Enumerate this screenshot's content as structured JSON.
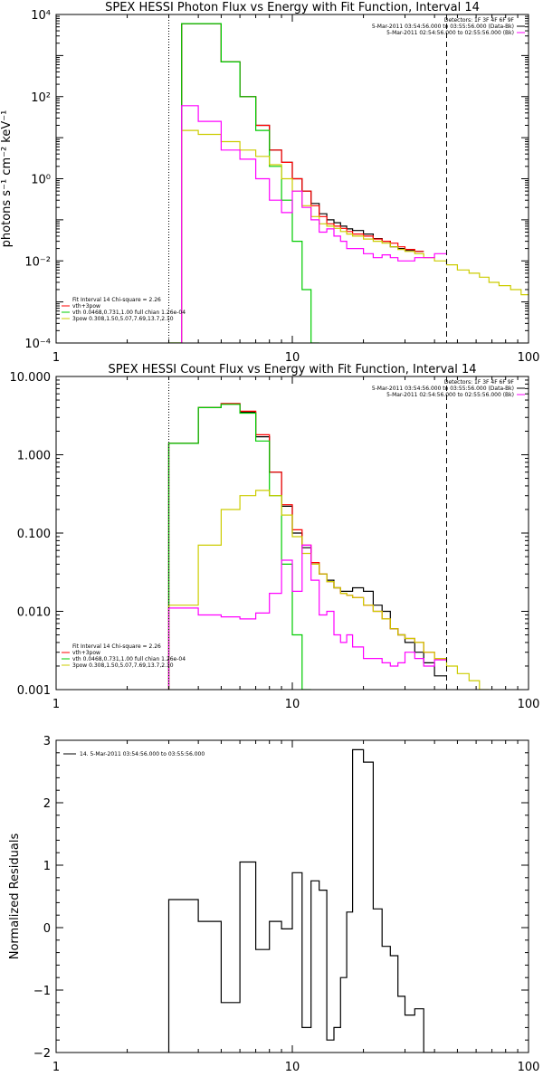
{
  "chart_data": [
    {
      "type": "line",
      "title": "SPEX HESSI Photon Flux vs Energy with Fit Function, Interval 14",
      "xlabel": "",
      "ylabel": "photons s⁻¹ cm⁻² keV⁻¹",
      "xscale": "log",
      "yscale": "log",
      "xlim": [
        1,
        100
      ],
      "ylim": [
        0.0001,
        10000
      ],
      "xticks": [
        {
          "v": 1,
          "label": "1"
        },
        {
          "v": 10,
          "label": "10"
        },
        {
          "v": 100,
          "label": "100"
        }
      ],
      "yticks": [
        {
          "v": 0.0001,
          "label": "10⁻⁴"
        },
        {
          "v": 0.01,
          "label": "10⁻²"
        },
        {
          "v": 1,
          "label": "10⁰"
        },
        {
          "v": 100,
          "label": "10²"
        },
        {
          "v": 10000,
          "label": "10⁴"
        }
      ],
      "grid": false,
      "vlines": [
        {
          "x": 3.0,
          "style": "dotted",
          "color": "#000000"
        },
        {
          "x": 45,
          "style": "dashed",
          "color": "#000000"
        }
      ],
      "legend_top_right": {
        "lines": [
          "Detectors: 1F 3F 4F 6F 9F",
          "5-Mar-2011 03:54:56.000 to 03:55:56.000 (Data-Bk)",
          "5-Mar-2011 02:54:56.000 to 02:55:56.000 (Bk)"
        ],
        "colors": [
          "",
          "#000000",
          "#ff00ff"
        ]
      },
      "legend_bottom_left": {
        "lines": [
          "Fit Interval 14    Chi-square = 2.26",
          "vth+3pow",
          "vth 0.0468,0.731,1.00  full chian 1.26e-04",
          "3pow 0.308,1.50,5.07,7.69,13.7,2.10"
        ],
        "colors": [
          "",
          "#ff0000",
          "#00cc00",
          "#cccc00"
        ]
      },
      "edges": [
        3.0,
        3.4,
        4.0,
        5.0,
        6.0,
        7.0,
        8.0,
        9.0,
        10.0,
        11.0,
        12.0,
        13.0,
        14.0,
        15.0,
        16.0,
        17.0,
        18.0,
        20.0,
        22.0,
        24.0,
        26.0,
        28.0,
        30.0,
        33.0,
        36.0,
        40.0,
        45.0,
        50.0,
        56.0,
        62.0,
        68.0,
        75.0,
        84.0,
        93.0,
        100.0
      ],
      "series": [
        {
          "name": "Data-Bk",
          "color": "#000000",
          "start": 1,
          "values": [
            6000,
            6000,
            700,
            100,
            20,
            5,
            2.5,
            1,
            0.5,
            0.25,
            0.14,
            0.1,
            0.085,
            0.07,
            0.06,
            0.055,
            0.045,
            0.035,
            0.03,
            0.022,
            0.02,
            0.018,
            0.017
          ]
        },
        {
          "name": "vth+3pow",
          "color": "#ff0000",
          "start": 1,
          "values": [
            6000,
            6000,
            700,
            100,
            20,
            5,
            2.5,
            1,
            0.5,
            0.22,
            0.12,
            0.08,
            0.07,
            0.062,
            0.052,
            0.045,
            0.04,
            0.034,
            0.03,
            0.027,
            0.022,
            0.019,
            0.017
          ]
        },
        {
          "name": "vth",
          "color": "#00cc00",
          "start": 0,
          "values": [
            0.0001,
            6000,
            6000,
            700,
            100,
            15,
            2,
            0.3,
            0.03,
            0.002,
            0.0001
          ]
        },
        {
          "name": "3pow",
          "color": "#cccc00",
          "start": 0,
          "values": [
            0.0001,
            15,
            12,
            8,
            5,
            3.5,
            2.2,
            1,
            0.5,
            0.22,
            0.12,
            0.08,
            0.07,
            0.062,
            0.052,
            0.045,
            0.04,
            0.034,
            0.03,
            0.027,
            0.022,
            0.019,
            0.017,
            0.015,
            0.012,
            0.01,
            0.008,
            0.006,
            0.005,
            0.004,
            0.003,
            0.0025,
            0.002,
            0.0015
          ]
        },
        {
          "name": "Bk",
          "color": "#ff00ff",
          "start": 1,
          "values": [
            60,
            25,
            5,
            3,
            1,
            0.3,
            0.15,
            0.5,
            0.2,
            0.1,
            0.05,
            0.06,
            0.04,
            0.03,
            0.02,
            0.02,
            0.015,
            0.012,
            0.014,
            0.012,
            0.01,
            0.01,
            0.012,
            0.012,
            0.015
          ]
        }
      ]
    },
    {
      "type": "line",
      "title": "SPEX HESSI Count Flux vs Energy with Fit Function, Interval 14",
      "xlabel": "",
      "ylabel": "",
      "xscale": "log",
      "yscale": "log",
      "xlim": [
        1,
        100
      ],
      "ylim": [
        0.001,
        10
      ],
      "xticks": [
        {
          "v": 1,
          "label": "1"
        },
        {
          "v": 10,
          "label": "10"
        },
        {
          "v": 100,
          "label": "100"
        }
      ],
      "yticks": [
        {
          "v": 0.001,
          "label": "0.001"
        },
        {
          "v": 0.01,
          "label": "0.010"
        },
        {
          "v": 0.1,
          "label": "0.100"
        },
        {
          "v": 1,
          "label": "1.000"
        },
        {
          "v": 10,
          "label": "10.000"
        }
      ],
      "grid": false,
      "vlines": [
        {
          "x": 3.0,
          "style": "dotted",
          "color": "#000000"
        },
        {
          "x": 45,
          "style": "dashed",
          "color": "#000000"
        }
      ],
      "legend_top_right": {
        "lines": [
          "Detectors: 1F 3F 4F 6F 9F",
          "5-Mar-2011 03:54:56.000 to 03:55:56.000 (Data-Bk)",
          "5-Mar-2011 02:54:56.000 to 02:55:56.000 (Bk)"
        ],
        "colors": [
          "",
          "#000000",
          "#ff00ff"
        ]
      },
      "legend_bottom_left": {
        "lines": [
          "Fit Interval 14    Chi-square = 2.26",
          "vth+3pow",
          "vth 0.0468,0.731,1.00  full chian 1.26e-04",
          "3pow 0.308,1.50,5.07,7.69,13.7,2.10"
        ],
        "colors": [
          "",
          "#ff0000",
          "#00cc00",
          "#cccc00"
        ]
      },
      "edges": [
        3.0,
        4.0,
        5.0,
        6.0,
        7.0,
        8.0,
        9.0,
        10.0,
        11.0,
        12.0,
        13.0,
        14.0,
        15.0,
        16.0,
        17.0,
        18.0,
        20.0,
        22.0,
        24.0,
        26.0,
        28.0,
        30.0,
        33.0,
        36.0,
        40.0,
        45.0,
        50.0,
        56.0,
        62.0,
        68.0,
        75.0,
        84.0,
        93.0,
        100.0
      ],
      "series": [
        {
          "name": "Data-Bk",
          "color": "#000000",
          "start": 0,
          "values": [
            1.4,
            4,
            4.5,
            3.5,
            1.7,
            0.6,
            0.22,
            0.1,
            0.065,
            0.04,
            0.03,
            0.025,
            0.02,
            0.018,
            0.018,
            0.02,
            0.018,
            0.012,
            0.01,
            0.006,
            0.005,
            0.004,
            0.003,
            0.0022,
            0.0015
          ]
        },
        {
          "name": "vth+3pow",
          "color": "#ff0000",
          "start": 0,
          "values": [
            1.4,
            4,
            4.5,
            3.6,
            1.8,
            0.6,
            0.23,
            0.11,
            0.07,
            0.042,
            0.03,
            0.024,
            0.02,
            0.017,
            0.016,
            0.015,
            0.012,
            0.01,
            0.008,
            0.006,
            0.005,
            0.0045,
            0.004,
            0.003,
            0.0025
          ]
        },
        {
          "name": "vth",
          "color": "#00cc00",
          "start": 0,
          "values": [
            1.4,
            4,
            4.4,
            3.4,
            1.5,
            0.3,
            0.04,
            0.005,
            0.001
          ]
        },
        {
          "name": "3pow",
          "color": "#cccc00",
          "start": 0,
          "values": [
            0.012,
            0.07,
            0.2,
            0.3,
            0.35,
            0.3,
            0.17,
            0.09,
            0.055,
            0.04,
            0.03,
            0.024,
            0.02,
            0.017,
            0.016,
            0.015,
            0.012,
            0.01,
            0.008,
            0.006,
            0.005,
            0.0045,
            0.004,
            0.003,
            0.0025,
            0.002,
            0.0016,
            0.0013,
            0.001
          ]
        },
        {
          "name": "Bk",
          "color": "#ff00ff",
          "start": 0,
          "values": [
            0.011,
            0.009,
            0.0085,
            0.008,
            0.0095,
            0.017,
            0.045,
            0.018,
            0.07,
            0.025,
            0.009,
            0.01,
            0.005,
            0.004,
            0.005,
            0.0035,
            0.0025,
            0.0025,
            0.0022,
            0.002,
            0.0022,
            0.003,
            0.0025,
            0.002,
            0.0024
          ]
        }
      ]
    },
    {
      "type": "line",
      "title": "",
      "xlabel": "",
      "ylabel": "Normalized Residuals",
      "xscale": "log",
      "yscale": "linear",
      "xlim": [
        1,
        100
      ],
      "ylim": [
        -2,
        3
      ],
      "xticks": [
        {
          "v": 1,
          "label": "1"
        },
        {
          "v": 10,
          "label": "10"
        },
        {
          "v": 100,
          "label": "100"
        }
      ],
      "yticks": [
        {
          "v": -2,
          "label": "−2"
        },
        {
          "v": -1,
          "label": "−1"
        },
        {
          "v": 0,
          "label": "0"
        },
        {
          "v": 1,
          "label": "1"
        },
        {
          "v": 2,
          "label": "2"
        },
        {
          "v": 3,
          "label": "3"
        }
      ],
      "grid": false,
      "vlines": [],
      "legend_top_left": {
        "lines": [
          "14.  5-Mar-2011 03:54:56.000 to 03:55:56.000"
        ],
        "colors": [
          "#000000"
        ]
      },
      "edges": [
        3.0,
        4.0,
        5.0,
        6.0,
        7.0,
        8.0,
        9.0,
        10.0,
        11.0,
        12.0,
        13.0,
        14.0,
        15.0,
        16.0,
        17.0,
        18.0,
        20.0,
        22.0,
        24.0,
        26.0,
        28.0,
        30.0,
        33.0,
        36.0,
        40.0,
        45.0
      ],
      "series": [
        {
          "name": "Residuals",
          "color": "#000000",
          "start": 0,
          "baseline": -2,
          "values": [
            0.45,
            0.1,
            -1.2,
            1.05,
            -0.35,
            0.1,
            -0.02,
            0.88,
            -1.6,
            0.75,
            0.6,
            -1.8,
            -1.6,
            -0.8,
            0.25,
            2.85,
            2.65,
            0.3,
            -0.3,
            -0.45,
            -1.1,
            -1.4,
            -1.3,
            -2
          ]
        }
      ]
    }
  ]
}
